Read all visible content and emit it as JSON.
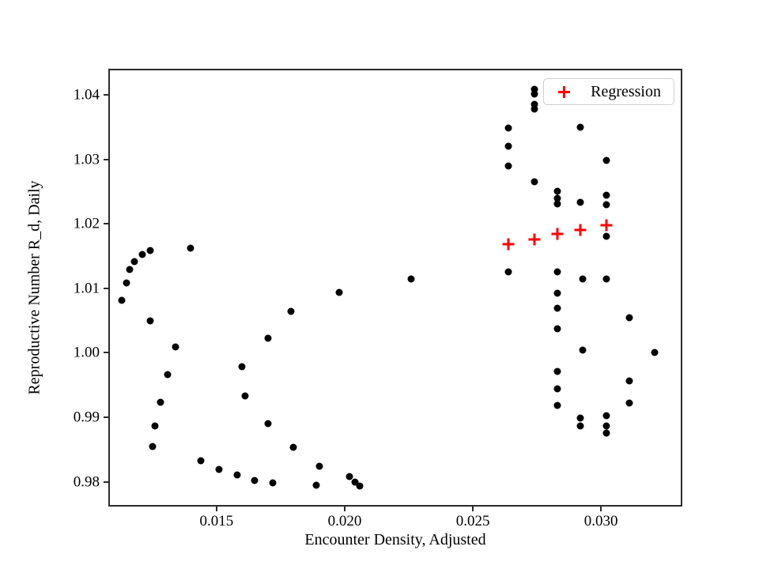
{
  "figure": {
    "background": "#ffffff",
    "frame_color": "#2b2b2b",
    "text_color": "#000000",
    "accent_color": "#ff0000"
  },
  "chart_data": {
    "type": "scatter",
    "title": "",
    "xlabel": "Encounter Density, Adjusted",
    "ylabel": "Reproductive Number R_d, Daily",
    "xlim": [
      0.01084,
      0.03311
    ],
    "ylim": [
      0.9764,
      1.0438
    ],
    "xticks": [
      0.015,
      0.02,
      0.025,
      0.03
    ],
    "xtick_labels": [
      "0.015",
      "0.020",
      "0.025",
      "0.030"
    ],
    "yticks": [
      0.98,
      0.99,
      1.0,
      1.01,
      1.02,
      1.03,
      1.04
    ],
    "ytick_labels": [
      "0.98",
      "0.99",
      "1.00",
      "1.01",
      "1.02",
      "1.03",
      "1.04"
    ],
    "grid": false,
    "legend": {
      "position": "upper right",
      "entries": [
        {
          "label": "Regression",
          "marker": "plus",
          "color": "#ff0000"
        }
      ]
    },
    "series": [
      {
        "name": "observations",
        "marker": "circle",
        "color": "#000000",
        "points": [
          [
            0.0113,
            1.0081
          ],
          [
            0.0115,
            1.0108
          ],
          [
            0.0116,
            1.0129
          ],
          [
            0.0118,
            1.0142
          ],
          [
            0.0121,
            1.0152
          ],
          [
            0.0124,
            1.0158
          ],
          [
            0.014,
            1.0162
          ],
          [
            0.0124,
            1.0049
          ],
          [
            0.0134,
            1.0009
          ],
          [
            0.0131,
            0.9966
          ],
          [
            0.0128,
            0.9923
          ],
          [
            0.0126,
            0.9886
          ],
          [
            0.0125,
            0.9855
          ],
          [
            0.0144,
            0.9833
          ],
          [
            0.0151,
            0.9819
          ],
          [
            0.0158,
            0.981
          ],
          [
            0.0165,
            0.9802
          ],
          [
            0.0172,
            0.9798
          ],
          [
            0.018,
            0.9853
          ],
          [
            0.0189,
            0.9795
          ],
          [
            0.019,
            0.9824
          ],
          [
            0.0202,
            0.9808
          ],
          [
            0.0204,
            0.9799
          ],
          [
            0.0206,
            0.9794
          ],
          [
            0.016,
            0.9979
          ],
          [
            0.0161,
            0.9933
          ],
          [
            0.017,
            0.989
          ],
          [
            0.017,
            1.0023
          ],
          [
            0.0179,
            1.0064
          ],
          [
            0.0198,
            1.0094
          ],
          [
            0.0226,
            1.0115
          ],
          [
            0.0264,
            1.0349
          ],
          [
            0.0264,
            1.032
          ],
          [
            0.0264,
            1.029
          ],
          [
            0.0264,
            1.0126
          ],
          [
            0.0274,
            1.0409
          ],
          [
            0.0274,
            1.0401
          ],
          [
            0.0274,
            1.0385
          ],
          [
            0.0274,
            1.0378
          ],
          [
            0.0274,
            1.0265
          ],
          [
            0.0283,
            1.0251
          ],
          [
            0.0283,
            1.0239
          ],
          [
            0.0283,
            1.0231
          ],
          [
            0.0283,
            1.0125
          ],
          [
            0.0283,
            1.0093
          ],
          [
            0.0283,
            1.0069
          ],
          [
            0.0283,
            1.0037
          ],
          [
            0.0283,
            0.9971
          ],
          [
            0.0283,
            0.9944
          ],
          [
            0.0283,
            0.9919
          ],
          [
            0.0292,
            1.035
          ],
          [
            0.0292,
            1.0233
          ],
          [
            0.0293,
            1.0114
          ],
          [
            0.0293,
            1.0004
          ],
          [
            0.0292,
            0.9899
          ],
          [
            0.0292,
            0.9886
          ],
          [
            0.0302,
            1.0298
          ],
          [
            0.0302,
            1.0244
          ],
          [
            0.0302,
            1.023
          ],
          [
            0.0302,
            1.0181
          ],
          [
            0.0302,
            1.0115
          ],
          [
            0.0302,
            0.9903
          ],
          [
            0.0302,
            0.9887
          ],
          [
            0.0302,
            0.9876
          ],
          [
            0.0311,
            1.0055
          ],
          [
            0.0311,
            0.9956
          ],
          [
            0.0311,
            0.9922
          ],
          [
            0.0321,
            1.0001
          ]
        ]
      },
      {
        "name": "Regression",
        "marker": "plus",
        "color": "#ff0000",
        "points": [
          [
            0.0264,
            1.0168
          ],
          [
            0.0274,
            1.0176
          ],
          [
            0.0283,
            1.0184
          ],
          [
            0.0292,
            1.0191
          ],
          [
            0.0302,
            1.0198
          ]
        ]
      }
    ]
  }
}
